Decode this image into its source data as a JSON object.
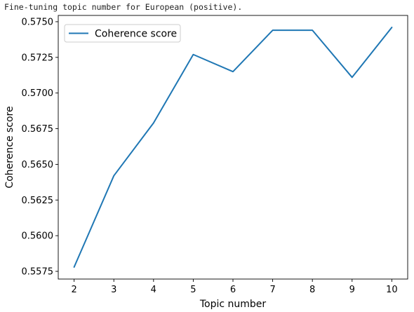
{
  "caption": "Fine-tuning topic number for European (positive).",
  "chart_data": {
    "type": "line",
    "title": "",
    "xlabel": "Topic number",
    "ylabel": "Coherence score",
    "x": [
      2,
      3,
      4,
      5,
      6,
      7,
      8,
      9,
      10
    ],
    "series": [
      {
        "name": "Coherence score",
        "color": "#1f77b4",
        "values": [
          0.5578,
          0.5642,
          0.5679,
          0.5727,
          0.5715,
          0.5744,
          0.5744,
          0.5711,
          0.5746
        ]
      }
    ],
    "xticks": [
      "2",
      "3",
      "4",
      "5",
      "6",
      "7",
      "8",
      "9",
      "10"
    ],
    "yticks": [
      "0.5575",
      "0.5600",
      "0.5625",
      "0.5650",
      "0.5675",
      "0.5700",
      "0.5725",
      "0.5750"
    ],
    "xlim": [
      1.6,
      10.4
    ],
    "ylim": [
      0.55696,
      0.57544
    ],
    "grid": false,
    "legend_position": "upper-left"
  }
}
